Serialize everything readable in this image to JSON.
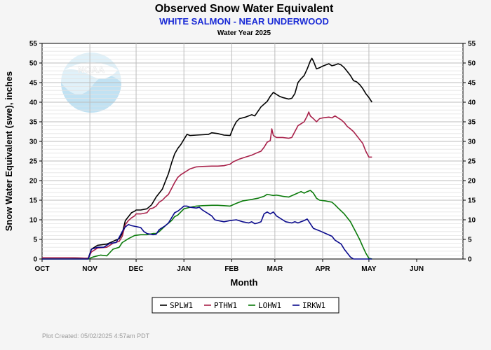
{
  "chart_data": {
    "type": "line",
    "title": "Observed Snow Water Equivalent",
    "subtitle": "WHITE SALMON - NEAR UNDERWOOD",
    "subtitle2": "Water Year 2025",
    "xlabel": "Month",
    "ylabel": "Snow Water Equivalent (swe),  inches",
    "ylim": [
      0,
      55
    ],
    "yticks": [
      0,
      5,
      10,
      15,
      20,
      25,
      30,
      35,
      40,
      45,
      50,
      55
    ],
    "xlim": [
      0,
      273
    ],
    "xticks": [
      {
        "label": "OCT",
        "day": 0
      },
      {
        "label": "NOV",
        "day": 31
      },
      {
        "label": "DEC",
        "day": 61
      },
      {
        "label": "JAN",
        "day": 92
      },
      {
        "label": "FEB",
        "day": 123
      },
      {
        "label": "MAR",
        "day": 151
      },
      {
        "label": "APR",
        "day": 182
      },
      {
        "label": "MAY",
        "day": 212
      },
      {
        "label": "JUN",
        "day": 243
      }
    ],
    "grid": true,
    "legend_position": "bottom",
    "logo": "NOAA",
    "series": [
      {
        "name": "SPLW1",
        "color": "#000000",
        "points": [
          [
            0,
            0.3
          ],
          [
            18,
            0.3
          ],
          [
            30,
            0.2
          ],
          [
            32,
            2.5
          ],
          [
            36,
            3.5
          ],
          [
            42,
            3.8
          ],
          [
            46,
            4.5
          ],
          [
            50,
            5.2
          ],
          [
            52,
            6.5
          ],
          [
            54,
            9.8
          ],
          [
            56,
            10.8
          ],
          [
            58,
            11.8
          ],
          [
            60,
            12.2
          ],
          [
            61,
            12.5
          ],
          [
            64,
            12.5
          ],
          [
            68,
            12.8
          ],
          [
            71,
            13.8
          ],
          [
            74,
            15.8
          ],
          [
            76,
            16.8
          ],
          [
            78,
            17.8
          ],
          [
            80,
            19.8
          ],
          [
            82,
            21.8
          ],
          [
            84,
            24.5
          ],
          [
            86,
            26.8
          ],
          [
            88,
            28.2
          ],
          [
            90,
            29.2
          ],
          [
            92,
            30.5
          ],
          [
            94,
            31.8
          ],
          [
            96,
            31.5
          ],
          [
            100,
            31.6
          ],
          [
            104,
            31.7
          ],
          [
            108,
            31.8
          ],
          [
            110,
            32.2
          ],
          [
            114,
            32.0
          ],
          [
            118,
            31.6
          ],
          [
            122,
            31.5
          ],
          [
            124,
            33.5
          ],
          [
            126,
            35.0
          ],
          [
            128,
            35.8
          ],
          [
            132,
            36.2
          ],
          [
            136,
            36.8
          ],
          [
            138,
            36.5
          ],
          [
            142,
            38.8
          ],
          [
            146,
            40.2
          ],
          [
            148,
            41.5
          ],
          [
            150,
            42.5
          ],
          [
            152,
            42.0
          ],
          [
            154,
            41.5
          ],
          [
            156,
            41.2
          ],
          [
            160,
            40.8
          ],
          [
            162,
            41.0
          ],
          [
            164,
            42.2
          ],
          [
            166,
            45.0
          ],
          [
            168,
            46.0
          ],
          [
            170,
            46.8
          ],
          [
            172,
            48.5
          ],
          [
            174,
            50.5
          ],
          [
            175,
            51.2
          ],
          [
            176,
            50.5
          ],
          [
            177,
            49.5
          ],
          [
            178,
            48.5
          ],
          [
            180,
            48.8
          ],
          [
            182,
            49.2
          ],
          [
            184,
            49.5
          ],
          [
            186,
            49.8
          ],
          [
            188,
            49.3
          ],
          [
            190,
            49.5
          ],
          [
            192,
            49.8
          ],
          [
            194,
            49.5
          ],
          [
            196,
            48.8
          ],
          [
            198,
            47.8
          ],
          [
            200,
            46.8
          ],
          [
            202,
            45.5
          ],
          [
            204,
            45.2
          ],
          [
            206,
            44.5
          ],
          [
            208,
            43.5
          ],
          [
            210,
            42.2
          ],
          [
            212,
            41.2
          ],
          [
            214,
            40.0
          ]
        ]
      },
      {
        "name": "PTHW1",
        "color": "#a8214a",
        "points": [
          [
            0,
            0.3
          ],
          [
            18,
            0.3
          ],
          [
            30,
            0.2
          ],
          [
            32,
            1.8
          ],
          [
            36,
            2.8
          ],
          [
            42,
            3.0
          ],
          [
            46,
            4.0
          ],
          [
            50,
            4.5
          ],
          [
            52,
            5.8
          ],
          [
            54,
            8.8
          ],
          [
            56,
            9.8
          ],
          [
            58,
            10.5
          ],
          [
            60,
            11.0
          ],
          [
            61,
            11.5
          ],
          [
            64,
            11.5
          ],
          [
            68,
            11.8
          ],
          [
            70,
            12.8
          ],
          [
            72,
            13.0
          ],
          [
            74,
            13.5
          ],
          [
            76,
            14.5
          ],
          [
            78,
            15.0
          ],
          [
            80,
            15.8
          ],
          [
            82,
            16.5
          ],
          [
            84,
            18.0
          ],
          [
            86,
            19.5
          ],
          [
            88,
            20.8
          ],
          [
            90,
            21.5
          ],
          [
            92,
            22.0
          ],
          [
            94,
            22.5
          ],
          [
            96,
            23.0
          ],
          [
            100,
            23.5
          ],
          [
            104,
            23.6
          ],
          [
            110,
            23.7
          ],
          [
            114,
            23.7
          ],
          [
            118,
            23.8
          ],
          [
            122,
            24.2
          ],
          [
            124,
            24.8
          ],
          [
            128,
            25.5
          ],
          [
            132,
            26.0
          ],
          [
            136,
            26.5
          ],
          [
            140,
            27.2
          ],
          [
            142,
            27.5
          ],
          [
            144,
            28.5
          ],
          [
            146,
            29.8
          ],
          [
            148,
            30.2
          ],
          [
            149,
            33.2
          ],
          [
            150,
            31.5
          ],
          [
            152,
            31.0
          ],
          [
            156,
            31.0
          ],
          [
            160,
            30.8
          ],
          [
            162,
            31.0
          ],
          [
            164,
            32.5
          ],
          [
            166,
            34.0
          ],
          [
            168,
            34.5
          ],
          [
            170,
            35.0
          ],
          [
            172,
            36.5
          ],
          [
            173,
            37.5
          ],
          [
            174,
            36.5
          ],
          [
            176,
            35.8
          ],
          [
            178,
            35.0
          ],
          [
            180,
            35.8
          ],
          [
            182,
            36.0
          ],
          [
            186,
            36.2
          ],
          [
            188,
            36.0
          ],
          [
            190,
            36.5
          ],
          [
            192,
            36.0
          ],
          [
            194,
            35.5
          ],
          [
            196,
            34.8
          ],
          [
            198,
            33.8
          ],
          [
            200,
            33.2
          ],
          [
            202,
            32.5
          ],
          [
            204,
            31.5
          ],
          [
            206,
            30.5
          ],
          [
            208,
            29.5
          ],
          [
            210,
            27.5
          ],
          [
            212,
            26.0
          ],
          [
            214,
            26.0
          ]
        ]
      },
      {
        "name": "LOHW1",
        "color": "#0a7a0a",
        "points": [
          [
            0,
            0
          ],
          [
            18,
            0
          ],
          [
            30,
            0
          ],
          [
            33,
            0.5
          ],
          [
            38,
            1.0
          ],
          [
            42,
            0.8
          ],
          [
            46,
            2.5
          ],
          [
            50,
            3.0
          ],
          [
            52,
            4.2
          ],
          [
            56,
            5.2
          ],
          [
            60,
            6.0
          ],
          [
            64,
            6.2
          ],
          [
            68,
            6.2
          ],
          [
            72,
            6.5
          ],
          [
            74,
            6.5
          ],
          [
            76,
            7.0
          ],
          [
            80,
            8.5
          ],
          [
            84,
            9.8
          ],
          [
            86,
            10.8
          ],
          [
            88,
            11.2
          ],
          [
            90,
            12.0
          ],
          [
            92,
            12.8
          ],
          [
            96,
            13.2
          ],
          [
            100,
            13.5
          ],
          [
            104,
            13.6
          ],
          [
            110,
            13.7
          ],
          [
            114,
            13.7
          ],
          [
            118,
            13.6
          ],
          [
            122,
            13.5
          ],
          [
            126,
            14.2
          ],
          [
            130,
            14.8
          ],
          [
            136,
            15.2
          ],
          [
            140,
            15.5
          ],
          [
            144,
            16.0
          ],
          [
            146,
            16.5
          ],
          [
            150,
            16.2
          ],
          [
            152,
            16.3
          ],
          [
            156,
            16.0
          ],
          [
            160,
            15.8
          ],
          [
            164,
            16.5
          ],
          [
            168,
            17.2
          ],
          [
            170,
            16.8
          ],
          [
            172,
            17.2
          ],
          [
            174,
            17.5
          ],
          [
            176,
            16.8
          ],
          [
            178,
            15.5
          ],
          [
            180,
            15.0
          ],
          [
            184,
            14.8
          ],
          [
            188,
            14.5
          ],
          [
            190,
            13.8
          ],
          [
            192,
            13.0
          ],
          [
            196,
            11.5
          ],
          [
            200,
            9.5
          ],
          [
            202,
            8.0
          ],
          [
            204,
            6.5
          ],
          [
            206,
            5.0
          ],
          [
            208,
            3.2
          ],
          [
            210,
            1.5
          ],
          [
            212,
            0.2
          ],
          [
            214,
            0
          ]
        ]
      },
      {
        "name": "IRKW1",
        "color": "#0a0a8c",
        "points": [
          [
            0,
            0
          ],
          [
            18,
            0
          ],
          [
            30,
            0
          ],
          [
            32,
            2.5
          ],
          [
            36,
            3.0
          ],
          [
            40,
            3.0
          ],
          [
            44,
            4.0
          ],
          [
            48,
            4.2
          ],
          [
            50,
            5.5
          ],
          [
            52,
            7.0
          ],
          [
            54,
            8.2
          ],
          [
            56,
            8.8
          ],
          [
            58,
            8.5
          ],
          [
            62,
            8.2
          ],
          [
            64,
            8.0
          ],
          [
            66,
            7.0
          ],
          [
            68,
            6.5
          ],
          [
            72,
            6.2
          ],
          [
            74,
            6.3
          ],
          [
            76,
            7.5
          ],
          [
            78,
            8.0
          ],
          [
            80,
            8.5
          ],
          [
            82,
            9.2
          ],
          [
            84,
            10.5
          ],
          [
            86,
            11.8
          ],
          [
            88,
            12.2
          ],
          [
            90,
            12.8
          ],
          [
            92,
            13.5
          ],
          [
            94,
            13.5
          ],
          [
            96,
            13.2
          ],
          [
            100,
            13.0
          ],
          [
            102,
            13.2
          ],
          [
            104,
            12.5
          ],
          [
            108,
            11.5
          ],
          [
            110,
            11.0
          ],
          [
            112,
            10.0
          ],
          [
            114,
            9.8
          ],
          [
            118,
            9.5
          ],
          [
            122,
            9.8
          ],
          [
            126,
            10.0
          ],
          [
            130,
            9.5
          ],
          [
            134,
            9.2
          ],
          [
            136,
            9.5
          ],
          [
            138,
            9.0
          ],
          [
            140,
            9.2
          ],
          [
            142,
            9.5
          ],
          [
            144,
            11.5
          ],
          [
            146,
            12.0
          ],
          [
            148,
            11.5
          ],
          [
            150,
            12.0
          ],
          [
            152,
            11.0
          ],
          [
            156,
            10.0
          ],
          [
            158,
            9.5
          ],
          [
            162,
            9.2
          ],
          [
            164,
            9.5
          ],
          [
            166,
            9.2
          ],
          [
            168,
            9.5
          ],
          [
            170,
            9.8
          ],
          [
            172,
            10.2
          ],
          [
            174,
            9.0
          ],
          [
            176,
            7.8
          ],
          [
            180,
            7.2
          ],
          [
            184,
            6.5
          ],
          [
            188,
            5.8
          ],
          [
            190,
            4.8
          ],
          [
            194,
            3.8
          ],
          [
            196,
            2.5
          ],
          [
            198,
            1.5
          ],
          [
            200,
            0.5
          ],
          [
            202,
            0
          ],
          [
            214,
            0
          ]
        ]
      }
    ]
  },
  "footer": {
    "plot_created": "Plot Created: 05/02/2025 4:57am PDT"
  }
}
